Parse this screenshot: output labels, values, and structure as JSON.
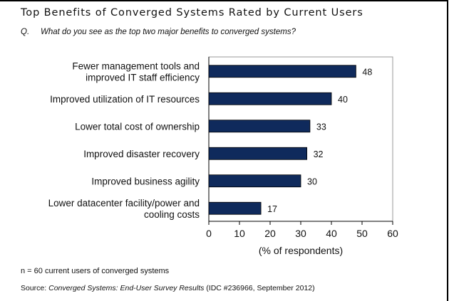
{
  "header": {
    "title": "Top Benefits of Converged Systems Rated by Current Users",
    "question_label": "Q.",
    "question": "What do you see as the top two major benefits to converged systems?"
  },
  "chart_data": {
    "type": "bar",
    "orientation": "horizontal",
    "title": "Top Benefits of Converged Systems Rated by Current Users",
    "categories": [
      [
        "Fewer management tools and",
        "improved IT staff efficiency"
      ],
      [
        "Improved utilization of IT resources"
      ],
      [
        "Lower total cost of ownership"
      ],
      [
        "Improved disaster recovery"
      ],
      [
        "Improved business agility"
      ],
      [
        "Lower datacenter facility/power and",
        "cooling costs"
      ]
    ],
    "values": [
      48,
      40,
      33,
      32,
      30,
      17
    ],
    "xlabel": "(% of respondents)",
    "ylabel": "",
    "xlim": [
      0,
      60
    ],
    "xticks": [
      0,
      10,
      20,
      30,
      40,
      50,
      60
    ],
    "bar_color": "#0f2a5c",
    "grid": false
  },
  "footer": {
    "note": "n = 60 current users of converged systems",
    "source_prefix": "Source: ",
    "source_title": "Converged Systems: End-User Survey Results",
    "source_suffix": " (IDC #236966, September 2012)"
  }
}
